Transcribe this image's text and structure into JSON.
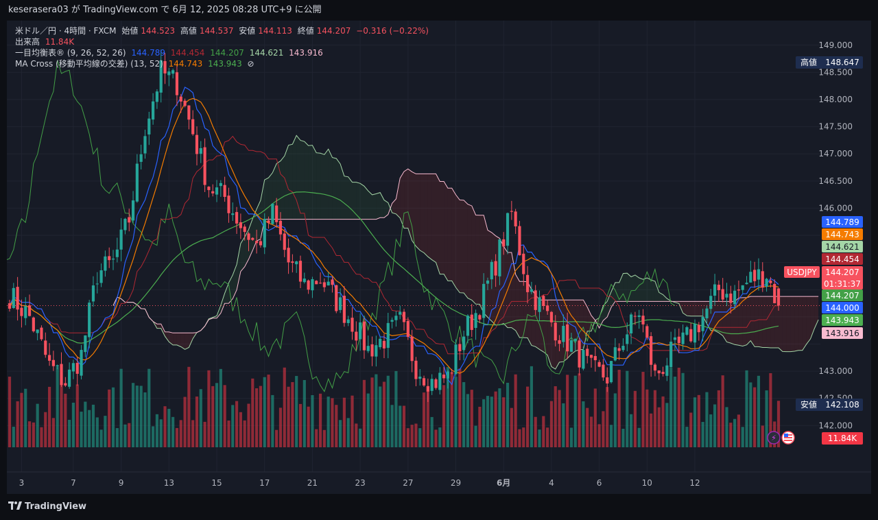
{
  "header": {
    "share_line": "keserasera03 が TradingView.com で 6月 12, 2025 08:28 UTC+9 に公開"
  },
  "legend": {
    "symbol": "米ドル／円 · 4時間 · FXCM",
    "open_label": "始値",
    "open": "144.523",
    "high_label": "高値",
    "high": "144.537",
    "low_label": "安値",
    "low": "144.113",
    "close_label": "終値",
    "close": "144.207",
    "change": "−0.316 (−0.22%)",
    "volume_label": "出来高",
    "volume": "11.84K",
    "ichimoku_label": "一目均衡表® (9, 26, 52, 26)",
    "ichimoku_values": [
      "144.789",
      "144.454",
      "144.207",
      "144.621",
      "143.916"
    ],
    "ma_label": "MA Cross (移動平均線の交差) (13, 52)",
    "ma_values": [
      "144.743",
      "143.943"
    ],
    "ma_hidden_icon": "⊘"
  },
  "colors": {
    "up": "#26a69a",
    "down": "#f7525f",
    "tenkan": "#2962ff",
    "kijun": "#b22833",
    "chikou": "#43a047",
    "spanA": "#a5d6a7",
    "spanB": "#f8bbd0",
    "ma_fast": "#f57c00",
    "ma_slow": "#4caf50",
    "vol_up": "#22ab94",
    "vol_down": "#f23645"
  },
  "chart_data": {
    "type": "candlestick",
    "symbol_tag": "USDJPY",
    "countdown": "01:31:37",
    "ylim": [
      141.6,
      149.3
    ],
    "y_ticks": [
      "149.000",
      "148.500",
      "148.000",
      "147.500",
      "147.000",
      "146.500",
      "146.000",
      "143.000",
      "142.500",
      "142.000"
    ],
    "x_ticks": [
      "3",
      "7",
      "9",
      "13",
      "15",
      "17",
      "21",
      "23",
      "27",
      "29",
      "6月",
      "4",
      "6",
      "10",
      "12"
    ],
    "high_marker": {
      "label": "高値",
      "value": "148.647"
    },
    "low_marker": {
      "label": "安値",
      "value": "142.108"
    },
    "price_labels": [
      {
        "name": "tenkan",
        "value": "144.789"
      },
      {
        "name": "ma-fast",
        "value": "144.743"
      },
      {
        "name": "span-a",
        "value": "144.621"
      },
      {
        "name": "kijun",
        "value": "144.454"
      },
      {
        "name": "close",
        "value": "144.207"
      },
      {
        "name": "chikou",
        "value": "144.207"
      },
      {
        "name": "level",
        "value": "144.000"
      },
      {
        "name": "ma-slow",
        "value": "143.943"
      },
      {
        "name": "span-b",
        "value": "143.916"
      }
    ],
    "volume_label": "11.84K",
    "anchors": [
      [
        0,
        144.4
      ],
      [
        5,
        144.0
      ],
      [
        10,
        143.1
      ],
      [
        14,
        142.8
      ],
      [
        18,
        143.3
      ],
      [
        22,
        144.8
      ],
      [
        26,
        145.0
      ],
      [
        30,
        145.8
      ],
      [
        34,
        147.5
      ],
      [
        38,
        148.5
      ],
      [
        42,
        148.3
      ],
      [
        46,
        147.4
      ],
      [
        50,
        146.4
      ],
      [
        54,
        146.2
      ],
      [
        58,
        145.7
      ],
      [
        62,
        145.3
      ],
      [
        66,
        145.9
      ],
      [
        70,
        145.0
      ],
      [
        74,
        144.6
      ],
      [
        78,
        144.7
      ],
      [
        82,
        144.3
      ],
      [
        86,
        143.9
      ],
      [
        90,
        143.4
      ],
      [
        94,
        143.6
      ],
      [
        98,
        143.9
      ],
      [
        102,
        143.1
      ],
      [
        106,
        142.8
      ],
      [
        110,
        142.9
      ],
      [
        114,
        143.7
      ],
      [
        118,
        144.2
      ],
      [
        122,
        145.0
      ],
      [
        126,
        145.9
      ],
      [
        130,
        144.6
      ],
      [
        134,
        144.1
      ],
      [
        138,
        143.7
      ],
      [
        142,
        143.4
      ],
      [
        146,
        143.0
      ],
      [
        150,
        142.9
      ],
      [
        154,
        143.6
      ],
      [
        158,
        144.1
      ],
      [
        162,
        142.9
      ],
      [
        166,
        143.3
      ],
      [
        170,
        143.6
      ],
      [
        174,
        144.0
      ],
      [
        178,
        144.5
      ],
      [
        182,
        144.4
      ],
      [
        186,
        144.7
      ],
      [
        190,
        144.8
      ],
      [
        193,
        144.2
      ]
    ]
  }
}
